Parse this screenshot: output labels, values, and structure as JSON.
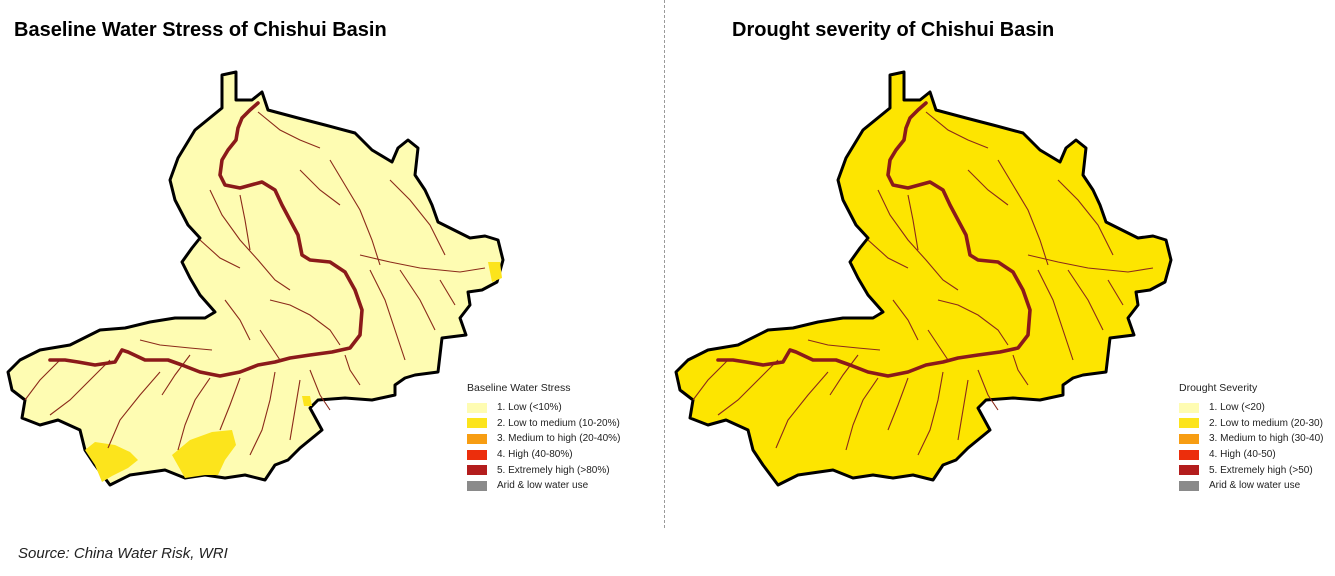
{
  "left": {
    "title": "Baseline Water Stress of Chishui Basin",
    "legend": {
      "title": "Baseline Water Stress",
      "items": [
        {
          "label": "1. Low (<10%)",
          "color": "#fefcb2"
        },
        {
          "label": "2. Low to medium (10-20%)",
          "color": "#fce41c"
        },
        {
          "label": "3. Medium to high (20-40%)",
          "color": "#f79d12"
        },
        {
          "label": "4. High (40-80%)",
          "color": "#ec2e0c"
        },
        {
          "label": "5. Extremely high (>80%)",
          "color": "#b31d1d"
        },
        {
          "label": "Arid & low water use",
          "color": "#8a8a8a"
        }
      ]
    },
    "basin_fill": "#fefcb2"
  },
  "right": {
    "title": "Drought severity of Chishui Basin",
    "legend": {
      "title": "Drought Severity",
      "items": [
        {
          "label": "1. Low (<20)",
          "color": "#fefcb2"
        },
        {
          "label": "2. Low to medium (20-30)",
          "color": "#fce41c"
        },
        {
          "label": "3. Medium to high (30-40)",
          "color": "#f79d12"
        },
        {
          "label": "4. High (40-50)",
          "color": "#ec2e0c"
        },
        {
          "label": "5. Extremely high (>50)",
          "color": "#b31d1d"
        },
        {
          "label": "Arid & low water use",
          "color": "#8a8a8a"
        }
      ]
    },
    "basin_fill": "#fde500"
  },
  "colors": {
    "main_river": "#8b1a1a",
    "tributary": "#8b2a1a",
    "outline": "#000000",
    "divider": "#9a9a9a"
  },
  "source": "Source: China Water Risk, WRI"
}
